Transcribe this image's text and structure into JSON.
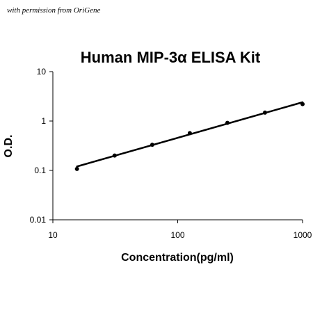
{
  "credit": "with permission from OriGene",
  "chart_data": {
    "type": "scatter",
    "title": "Human MIP-3α ELISA Kit",
    "xlabel": "Concentration(pg/ml)",
    "ylabel": "O.D.",
    "x_scale": "log",
    "y_scale": "log",
    "xlim": [
      10,
      1000
    ],
    "ylim": [
      0.01,
      10
    ],
    "x_ticks": [
      "10",
      "100",
      "1000"
    ],
    "y_ticks": [
      "10",
      "1",
      "0.1",
      "0.01"
    ],
    "grid": false,
    "legend": "none",
    "color": "#000000",
    "points": {
      "x": [
        15.6,
        31.25,
        62.5,
        125,
        250,
        500,
        1000
      ],
      "y": [
        0.107,
        0.2,
        0.33,
        0.57,
        0.92,
        1.48,
        2.2
      ]
    },
    "fit_line": {
      "x": [
        15.6,
        1000
      ],
      "y": [
        0.12,
        2.4
      ]
    }
  }
}
